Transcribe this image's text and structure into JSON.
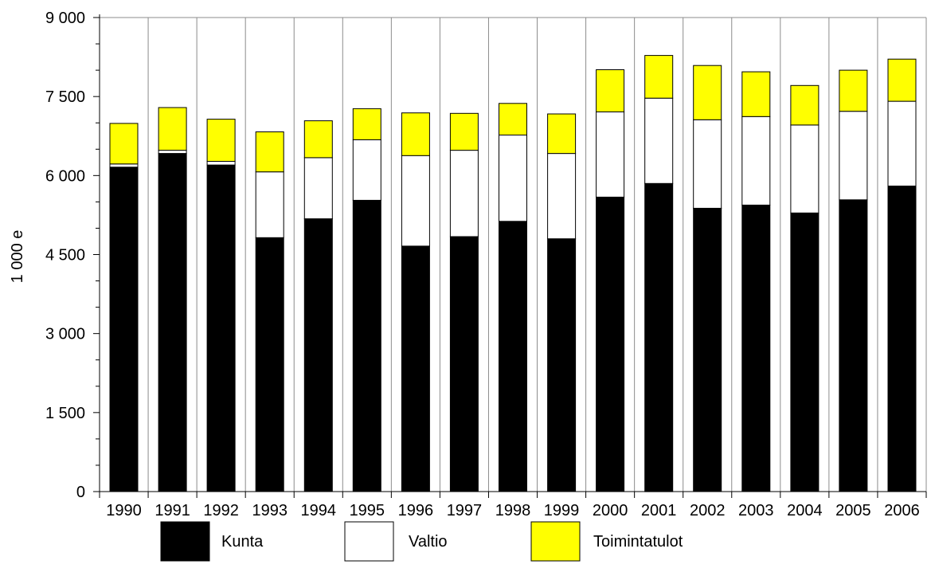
{
  "chart_data": {
    "type": "bar",
    "stacked": true,
    "title": "",
    "xlabel": "",
    "ylabel": "1 000 e",
    "ylim": [
      0,
      9000
    ],
    "yticks": [
      "0",
      "1 500",
      "3 000",
      "4 500",
      "6 000",
      "7 500",
      "9 000"
    ],
    "ytick_values": [
      0,
      1500,
      3000,
      4500,
      6000,
      7500,
      9000
    ],
    "grid": "vertical",
    "legend_position": "bottom",
    "categories": [
      "1990",
      "1991",
      "1992",
      "1993",
      "1994",
      "1995",
      "1996",
      "1997",
      "1998",
      "1999",
      "2000",
      "2001",
      "2002",
      "2003",
      "2004",
      "2005",
      "2006"
    ],
    "series": [
      {
        "name": "Kunta",
        "color": "#000000",
        "values": [
          6160,
          6420,
          6200,
          4820,
          5180,
          5530,
          4660,
          4840,
          5130,
          4800,
          5590,
          5850,
          5380,
          5440,
          5290,
          5540,
          5800
        ]
      },
      {
        "name": "Valtio",
        "color": "#ffffff",
        "values": [
          60,
          60,
          70,
          1250,
          1160,
          1150,
          1720,
          1640,
          1640,
          1620,
          1620,
          1620,
          1680,
          1680,
          1670,
          1680,
          1610
        ]
      },
      {
        "name": "Toimintatulot",
        "color": "#ffff00",
        "values": [
          770,
          810,
          800,
          760,
          700,
          590,
          810,
          700,
          600,
          750,
          800,
          810,
          1030,
          850,
          750,
          780,
          800
        ]
      }
    ]
  }
}
